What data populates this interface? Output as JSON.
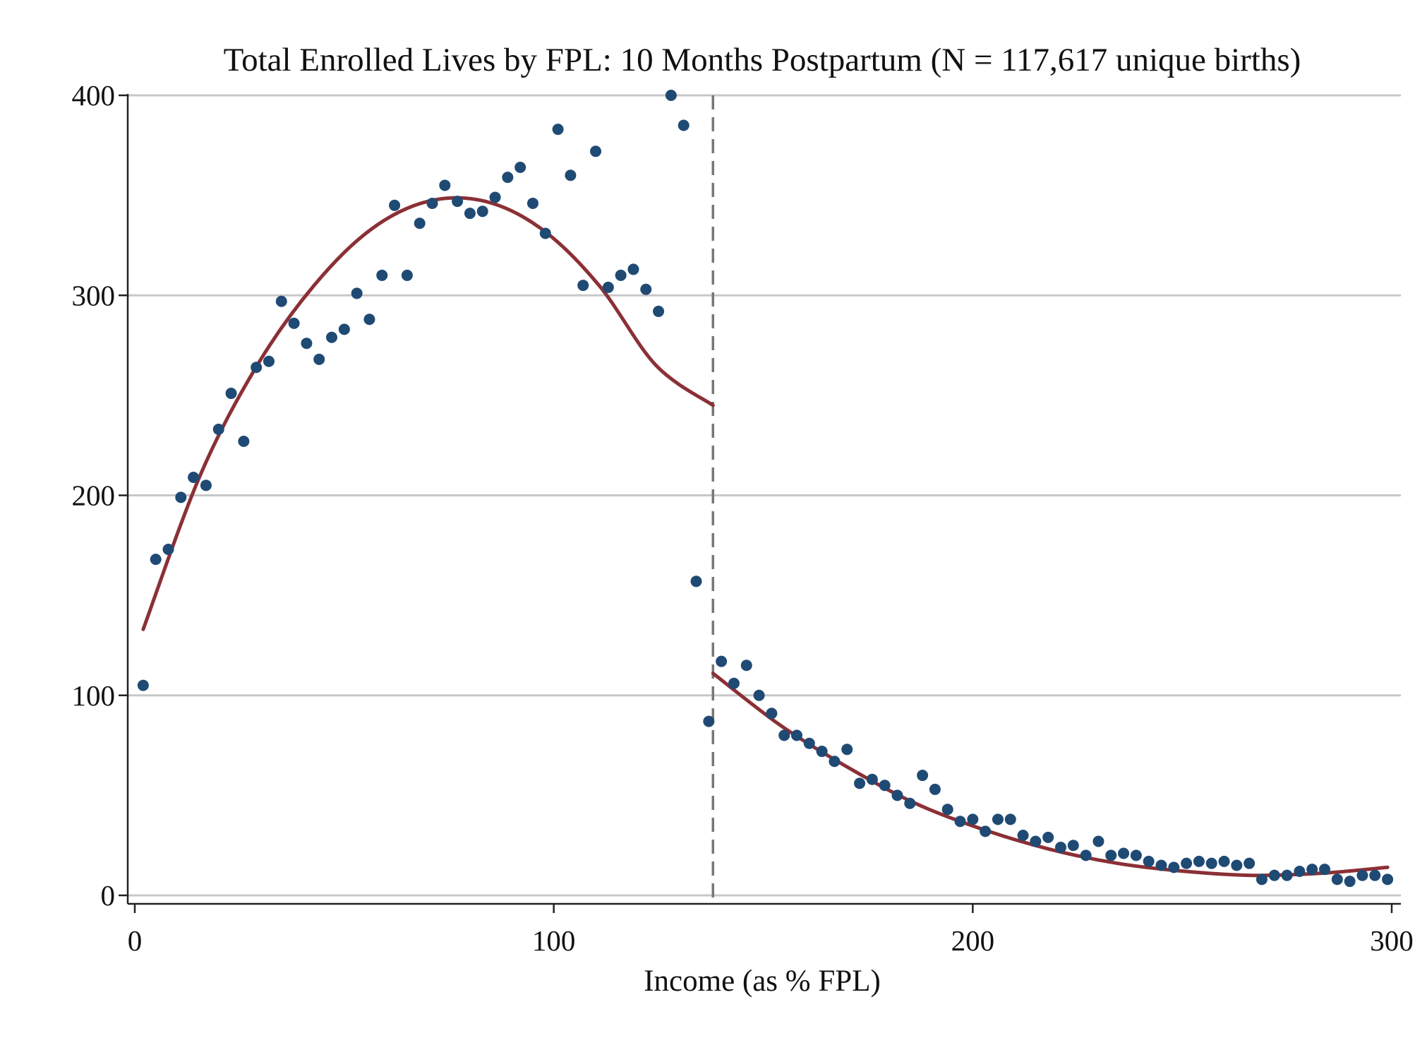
{
  "chart_data": {
    "type": "scatter",
    "title": "Total Enrolled Lives by FPL: 10 Months Postpartum (N = 117,617 unique births)",
    "xlabel": "Income (as % FPL)",
    "ylabel": "",
    "xlim": [
      0,
      300
    ],
    "ylim": [
      0,
      400
    ],
    "xticks": [
      0,
      100,
      200,
      300
    ],
    "yticks": [
      0,
      100,
      200,
      300,
      400
    ],
    "grid": "horizontal",
    "cutoff_x": 138,
    "colors": {
      "points": "#1f4a74",
      "fit": "#8b3036",
      "cutoff": "#777777",
      "grid": "#c8c8c8"
    },
    "points": [
      {
        "x": 2,
        "y": 105
      },
      {
        "x": 5,
        "y": 168
      },
      {
        "x": 8,
        "y": 173
      },
      {
        "x": 11,
        "y": 199
      },
      {
        "x": 14,
        "y": 209
      },
      {
        "x": 17,
        "y": 205
      },
      {
        "x": 20,
        "y": 233
      },
      {
        "x": 23,
        "y": 251
      },
      {
        "x": 26,
        "y": 227
      },
      {
        "x": 29,
        "y": 264
      },
      {
        "x": 32,
        "y": 267
      },
      {
        "x": 35,
        "y": 297
      },
      {
        "x": 38,
        "y": 286
      },
      {
        "x": 41,
        "y": 276
      },
      {
        "x": 44,
        "y": 268
      },
      {
        "x": 47,
        "y": 279
      },
      {
        "x": 50,
        "y": 283
      },
      {
        "x": 53,
        "y": 301
      },
      {
        "x": 56,
        "y": 288
      },
      {
        "x": 59,
        "y": 310
      },
      {
        "x": 62,
        "y": 345
      },
      {
        "x": 65,
        "y": 310
      },
      {
        "x": 68,
        "y": 336
      },
      {
        "x": 71,
        "y": 346
      },
      {
        "x": 74,
        "y": 355
      },
      {
        "x": 77,
        "y": 347
      },
      {
        "x": 80,
        "y": 341
      },
      {
        "x": 83,
        "y": 342
      },
      {
        "x": 86,
        "y": 349
      },
      {
        "x": 89,
        "y": 359
      },
      {
        "x": 92,
        "y": 364
      },
      {
        "x": 95,
        "y": 346
      },
      {
        "x": 98,
        "y": 331
      },
      {
        "x": 101,
        "y": 383
      },
      {
        "x": 104,
        "y": 360
      },
      {
        "x": 107,
        "y": 305
      },
      {
        "x": 110,
        "y": 372
      },
      {
        "x": 113,
        "y": 304
      },
      {
        "x": 116,
        "y": 310
      },
      {
        "x": 119,
        "y": 313
      },
      {
        "x": 122,
        "y": 303
      },
      {
        "x": 125,
        "y": 292
      },
      {
        "x": 128,
        "y": 400
      },
      {
        "x": 131,
        "y": 385
      },
      {
        "x": 134,
        "y": 157
      },
      {
        "x": 137,
        "y": 87
      },
      {
        "x": 140,
        "y": 117
      },
      {
        "x": 143,
        "y": 106
      },
      {
        "x": 146,
        "y": 115
      },
      {
        "x": 149,
        "y": 100
      },
      {
        "x": 152,
        "y": 91
      },
      {
        "x": 155,
        "y": 80
      },
      {
        "x": 158,
        "y": 80
      },
      {
        "x": 161,
        "y": 76
      },
      {
        "x": 164,
        "y": 72
      },
      {
        "x": 167,
        "y": 67
      },
      {
        "x": 170,
        "y": 73
      },
      {
        "x": 173,
        "y": 56
      },
      {
        "x": 176,
        "y": 58
      },
      {
        "x": 179,
        "y": 55
      },
      {
        "x": 182,
        "y": 50
      },
      {
        "x": 185,
        "y": 46
      },
      {
        "x": 188,
        "y": 60
      },
      {
        "x": 191,
        "y": 53
      },
      {
        "x": 194,
        "y": 43
      },
      {
        "x": 197,
        "y": 37
      },
      {
        "x": 200,
        "y": 38
      },
      {
        "x": 203,
        "y": 32
      },
      {
        "x": 206,
        "y": 38
      },
      {
        "x": 209,
        "y": 38
      },
      {
        "x": 212,
        "y": 30
      },
      {
        "x": 215,
        "y": 27
      },
      {
        "x": 218,
        "y": 29
      },
      {
        "x": 221,
        "y": 24
      },
      {
        "x": 224,
        "y": 25
      },
      {
        "x": 227,
        "y": 20
      },
      {
        "x": 230,
        "y": 27
      },
      {
        "x": 233,
        "y": 20
      },
      {
        "x": 236,
        "y": 21
      },
      {
        "x": 239,
        "y": 20
      },
      {
        "x": 242,
        "y": 17
      },
      {
        "x": 245,
        "y": 15
      },
      {
        "x": 248,
        "y": 14
      },
      {
        "x": 251,
        "y": 16
      },
      {
        "x": 254,
        "y": 17
      },
      {
        "x": 257,
        "y": 16
      },
      {
        "x": 260,
        "y": 17
      },
      {
        "x": 263,
        "y": 15
      },
      {
        "x": 266,
        "y": 16
      },
      {
        "x": 269,
        "y": 8
      },
      {
        "x": 272,
        "y": 10
      },
      {
        "x": 275,
        "y": 10
      },
      {
        "x": 278,
        "y": 12
      },
      {
        "x": 281,
        "y": 13
      },
      {
        "x": 284,
        "y": 13
      },
      {
        "x": 287,
        "y": 8
      },
      {
        "x": 290,
        "y": 7
      },
      {
        "x": 293,
        "y": 10
      },
      {
        "x": 296,
        "y": 10
      },
      {
        "x": 299,
        "y": 8
      }
    ],
    "fits": [
      {
        "segment": "left",
        "x_range": [
          2,
          138
        ],
        "y": [
          133,
          210,
          265,
          305,
          333,
          347,
          347,
          333,
          305,
          265,
          245
        ]
      },
      {
        "segment": "right",
        "x_range": [
          138,
          299
        ],
        "y": [
          111,
          85,
          64,
          46,
          33,
          23,
          16,
          12,
          10,
          11,
          14
        ]
      }
    ]
  }
}
